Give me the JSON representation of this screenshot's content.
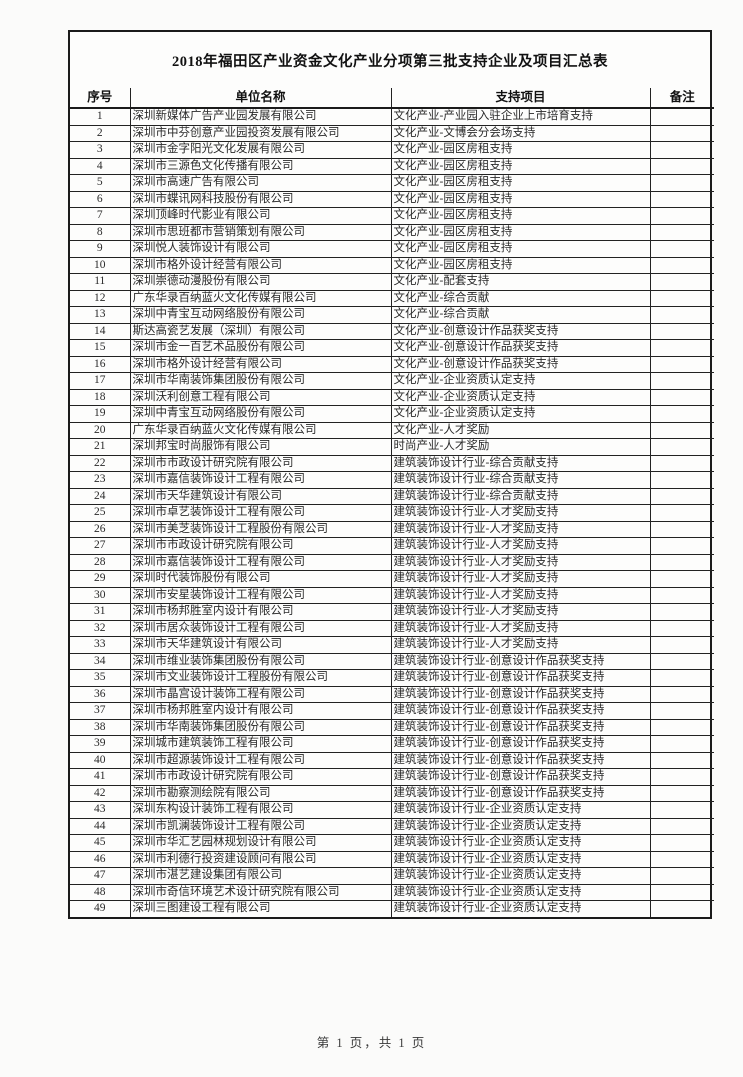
{
  "page": {
    "title": "2018年福田区产业资金文化产业分项第三批支持企业及项目汇总表",
    "footer": "第 1 页，共 1 页"
  },
  "table": {
    "headers": [
      "序号",
      "单位名称",
      "支持项目",
      "备注"
    ],
    "rows": [
      {
        "no": "1",
        "company": "深圳新媒体广告产业园发展有限公司",
        "project": "文化产业-产业园入驻企业上市培育支持",
        "remark": ""
      },
      {
        "no": "2",
        "company": "深圳市中芬创意产业园投资发展有限公司",
        "project": "文化产业-文博会分会场支持",
        "remark": ""
      },
      {
        "no": "3",
        "company": "深圳市金字阳光文化发展有限公司",
        "project": "文化产业-园区房租支持",
        "remark": ""
      },
      {
        "no": "4",
        "company": "深圳市三源色文化传播有限公司",
        "project": "文化产业-园区房租支持",
        "remark": ""
      },
      {
        "no": "5",
        "company": "深圳市高速广告有限公司",
        "project": "文化产业-园区房租支持",
        "remark": ""
      },
      {
        "no": "6",
        "company": "深圳市蝶讯网科技股份有限公司",
        "project": "文化产业-园区房租支持",
        "remark": ""
      },
      {
        "no": "7",
        "company": "深圳顶峰时代影业有限公司",
        "project": "文化产业-园区房租支持",
        "remark": ""
      },
      {
        "no": "8",
        "company": "深圳市思班都市营销策划有限公司",
        "project": "文化产业-园区房租支持",
        "remark": ""
      },
      {
        "no": "9",
        "company": "深圳悦人装饰设计有限公司",
        "project": "文化产业-园区房租支持",
        "remark": ""
      },
      {
        "no": "10",
        "company": "深圳市格外设计经营有限公司",
        "project": "文化产业-园区房租支持",
        "remark": ""
      },
      {
        "no": "11",
        "company": "深圳崇德动漫股份有限公司",
        "project": "文化产业-配套支持",
        "remark": ""
      },
      {
        "no": "12",
        "company": "广东华录百纳蓝火文化传媒有限公司",
        "project": "文化产业-综合贡献",
        "remark": ""
      },
      {
        "no": "13",
        "company": "深圳中青宝互动网络股份有限公司",
        "project": "文化产业-综合贡献",
        "remark": ""
      },
      {
        "no": "14",
        "company": "斯达高瓷艺发展（深圳）有限公司",
        "project": "文化产业-创意设计作品获奖支持",
        "remark": ""
      },
      {
        "no": "15",
        "company": "深圳市金一百艺术品股份有限公司",
        "project": "文化产业-创意设计作品获奖支持",
        "remark": ""
      },
      {
        "no": "16",
        "company": "深圳市格外设计经营有限公司",
        "project": "文化产业-创意设计作品获奖支持",
        "remark": ""
      },
      {
        "no": "17",
        "company": "深圳市华南装饰集团股份有限公司",
        "project": "文化产业-企业资质认定支持",
        "remark": ""
      },
      {
        "no": "18",
        "company": "深圳沃利创意工程有限公司",
        "project": "文化产业-企业资质认定支持",
        "remark": ""
      },
      {
        "no": "19",
        "company": "深圳中青宝互动网络股份有限公司",
        "project": "文化产业-企业资质认定支持",
        "remark": ""
      },
      {
        "no": "20",
        "company": "广东华录百纳蓝火文化传媒有限公司",
        "project": "文化产业-人才奖励",
        "remark": ""
      },
      {
        "no": "21",
        "company": "深圳邦宝时尚服饰有限公司",
        "project": "时尚产业-人才奖励",
        "remark": ""
      },
      {
        "no": "22",
        "company": "深圳市市政设计研究院有限公司",
        "project": "建筑装饰设计行业-综合贡献支持",
        "remark": ""
      },
      {
        "no": "23",
        "company": "深圳市嘉信装饰设计工程有限公司",
        "project": "建筑装饰设计行业-综合贡献支持",
        "remark": ""
      },
      {
        "no": "24",
        "company": "深圳市天华建筑设计有限公司",
        "project": "建筑装饰设计行业-综合贡献支持",
        "remark": ""
      },
      {
        "no": "25",
        "company": "深圳市卓艺装饰设计工程有限公司",
        "project": "建筑装饰设计行业-人才奖励支持",
        "remark": ""
      },
      {
        "no": "26",
        "company": "深圳市美芝装饰设计工程股份有限公司",
        "project": "建筑装饰设计行业-人才奖励支持",
        "remark": ""
      },
      {
        "no": "27",
        "company": "深圳市市政设计研究院有限公司",
        "project": "建筑装饰设计行业-人才奖励支持",
        "remark": ""
      },
      {
        "no": "28",
        "company": "深圳市嘉信装饰设计工程有限公司",
        "project": "建筑装饰设计行业-人才奖励支持",
        "remark": ""
      },
      {
        "no": "29",
        "company": "深圳时代装饰股份有限公司",
        "project": "建筑装饰设计行业-人才奖励支持",
        "remark": ""
      },
      {
        "no": "30",
        "company": "深圳市安星装饰设计工程有限公司",
        "project": "建筑装饰设计行业-人才奖励支持",
        "remark": ""
      },
      {
        "no": "31",
        "company": "深圳市杨邦胜室内设计有限公司",
        "project": "建筑装饰设计行业-人才奖励支持",
        "remark": ""
      },
      {
        "no": "32",
        "company": "深圳市居众装饰设计工程有限公司",
        "project": "建筑装饰设计行业-人才奖励支持",
        "remark": ""
      },
      {
        "no": "33",
        "company": "深圳市天华建筑设计有限公司",
        "project": "建筑装饰设计行业-人才奖励支持",
        "remark": ""
      },
      {
        "no": "34",
        "company": "深圳市维业装饰集团股份有限公司",
        "project": "建筑装饰设计行业-创意设计作品获奖支持",
        "remark": ""
      },
      {
        "no": "35",
        "company": "深圳市文业装饰设计工程股份有限公司",
        "project": "建筑装饰设计行业-创意设计作品获奖支持",
        "remark": ""
      },
      {
        "no": "36",
        "company": "深圳市晶宫设计装饰工程有限公司",
        "project": "建筑装饰设计行业-创意设计作品获奖支持",
        "remark": ""
      },
      {
        "no": "37",
        "company": "深圳市杨邦胜室内设计有限公司",
        "project": "建筑装饰设计行业-创意设计作品获奖支持",
        "remark": ""
      },
      {
        "no": "38",
        "company": "深圳市华南装饰集团股份有限公司",
        "project": "建筑装饰设计行业-创意设计作品获奖支持",
        "remark": ""
      },
      {
        "no": "39",
        "company": "深圳城市建筑装饰工程有限公司",
        "project": "建筑装饰设计行业-创意设计作品获奖支持",
        "remark": ""
      },
      {
        "no": "40",
        "company": "深圳市超源装饰设计工程有限公司",
        "project": "建筑装饰设计行业-创意设计作品获奖支持",
        "remark": ""
      },
      {
        "no": "41",
        "company": "深圳市市政设计研究院有限公司",
        "project": "建筑装饰设计行业-创意设计作品获奖支持",
        "remark": ""
      },
      {
        "no": "42",
        "company": "深圳市勘察测绘院有限公司",
        "project": "建筑装饰设计行业-创意设计作品获奖支持",
        "remark": ""
      },
      {
        "no": "43",
        "company": "深圳东构设计装饰工程有限公司",
        "project": "建筑装饰设计行业-企业资质认定支持",
        "remark": ""
      },
      {
        "no": "44",
        "company": "深圳市凯澜装饰设计工程有限公司",
        "project": "建筑装饰设计行业-企业资质认定支持",
        "remark": ""
      },
      {
        "no": "45",
        "company": "深圳市华汇艺园林规划设计有限公司",
        "project": "建筑装饰设计行业-企业资质认定支持",
        "remark": ""
      },
      {
        "no": "46",
        "company": "深圳市利德行投资建设顾问有限公司",
        "project": "建筑装饰设计行业-企业资质认定支持",
        "remark": ""
      },
      {
        "no": "47",
        "company": "深圳市湛艺建设集团有限公司",
        "project": "建筑装饰设计行业-企业资质认定支持",
        "remark": ""
      },
      {
        "no": "48",
        "company": "深圳市奇信环境艺术设计研究院有限公司",
        "project": "建筑装饰设计行业-企业资质认定支持",
        "remark": ""
      },
      {
        "no": "49",
        "company": "深圳三图建设工程有限公司",
        "project": "建筑装饰设计行业-企业资质认定支持",
        "remark": ""
      }
    ]
  }
}
